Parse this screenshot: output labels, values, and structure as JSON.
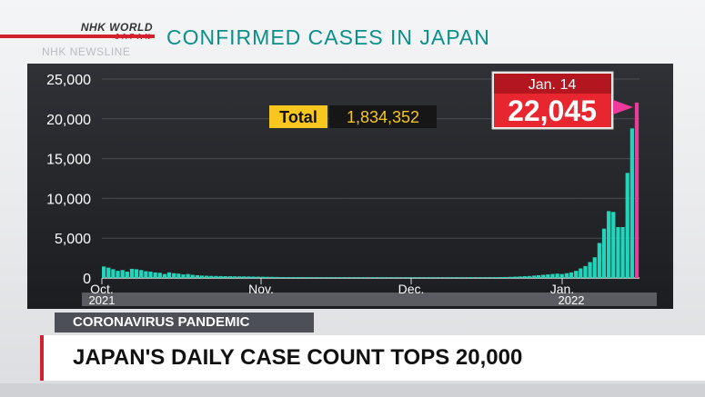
{
  "branding": {
    "network_line1": "NHK WORLD",
    "network_line2": "JAPAN",
    "program": "NHK NEWSLINE",
    "accent_color": "#d5202e"
  },
  "headline": "CONFIRMED CASES IN JAPAN",
  "chart_data": {
    "type": "bar",
    "bar_color": "#1fd5bb",
    "highlight_color": "#ee3a9a",
    "ylim": [
      0,
      25000
    ],
    "yticks": [
      0,
      5000,
      10000,
      15000,
      20000,
      25000
    ],
    "ytick_labels": [
      "0",
      "5,000",
      "10,000",
      "15,000",
      "20,000",
      "25,000"
    ],
    "x_tick_labels": [
      "Oct.",
      "Nov.",
      "Dec.",
      "Jan."
    ],
    "year_labels": [
      "2021",
      "2022"
    ],
    "values": [
      1440,
      1300,
      1100,
      900,
      1000,
      800,
      1150,
      1100,
      1000,
      850,
      800,
      700,
      650,
      500,
      700,
      600,
      550,
      450,
      500,
      400,
      350,
      300,
      280,
      260,
      250,
      240,
      230,
      220,
      210,
      200,
      200,
      190,
      180,
      170,
      160,
      150,
      140,
      130,
      120,
      110,
      110,
      110,
      105,
      100,
      100,
      95,
      95,
      90,
      90,
      85,
      85,
      80,
      80,
      80,
      80,
      80,
      80,
      80,
      80,
      80,
      80,
      80,
      80,
      80,
      80,
      80,
      80,
      80,
      80,
      80,
      80,
      80,
      80,
      80,
      80,
      80,
      80,
      80,
      80,
      80,
      90,
      90,
      95,
      100,
      110,
      120,
      130,
      150,
      170,
      200,
      230,
      250,
      300,
      350,
      400,
      450,
      500,
      550,
      500,
      600,
      700,
      900,
      1200,
      1500,
      2000,
      2600,
      4400,
      6200,
      8400,
      8300,
      6400,
      6400,
      13200,
      18800,
      22045
    ],
    "highlight": {
      "date": "Jan. 14",
      "value": "22,045"
    },
    "total": {
      "label": "Total",
      "value": "1,834,352"
    }
  },
  "ticker": {
    "category": "CORONAVIRUS PANDEMIC",
    "headline": "JAPAN'S DAILY CASE COUNT TOPS 20,000"
  }
}
